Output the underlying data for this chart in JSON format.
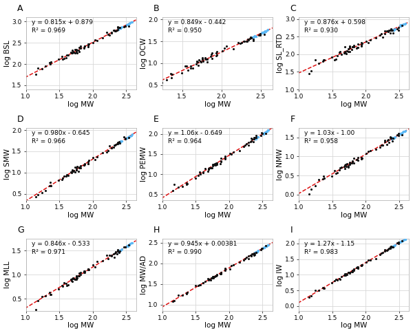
{
  "subplots": [
    {
      "label": "A",
      "ylabel": "log BSL",
      "xlabel": "log MW",
      "equation": "y = 0.815x + 0.879",
      "r2": "R² = 0.969",
      "slope": 0.815,
      "intercept": 0.879,
      "xlim": [
        1.0,
        2.65
      ],
      "ylim": [
        1.4,
        3.1
      ],
      "xticks": [
        1.0,
        1.5,
        2.0,
        2.5
      ],
      "yticks": [
        1.5,
        2.0,
        2.5,
        3.0
      ],
      "x_black": [
        1.1,
        1.25,
        1.3,
        1.35,
        1.42,
        1.45,
        1.48,
        1.52,
        1.55,
        1.58,
        1.6,
        1.62,
        1.65,
        1.68,
        1.7,
        1.72,
        1.75,
        1.78,
        1.8,
        1.82,
        1.85,
        1.87,
        1.88,
        1.9,
        1.91,
        1.92,
        1.93,
        1.95,
        1.96,
        1.97,
        1.98,
        1.99,
        2.0,
        2.0,
        2.01,
        2.02,
        2.03,
        2.04,
        2.05,
        2.06,
        2.07,
        2.08,
        2.09,
        2.1,
        2.11,
        2.12,
        2.13,
        2.14,
        2.15,
        2.16,
        2.17,
        2.18,
        2.19,
        2.2,
        2.21,
        2.22,
        2.23,
        2.24,
        2.25,
        2.28,
        2.3,
        2.32,
        2.35,
        2.38,
        2.4,
        2.42,
        2.45,
        2.48,
        2.5,
        2.52
      ],
      "noise_black": [
        0.0,
        -0.25,
        -0.05,
        0.1,
        -0.08,
        0.15,
        -0.1,
        0.05,
        0.08,
        -0.05,
        0.0,
        0.12,
        -0.06,
        0.08,
        -0.03,
        0.1,
        0.0,
        -0.08,
        0.05,
        0.12,
        -0.05,
        0.08,
        0.0,
        -0.06,
        0.1,
        0.03,
        -0.08,
        0.05,
        0.0,
        0.12,
        -0.05,
        0.08,
        0.0,
        -0.1,
        0.05,
        -0.05,
        0.08,
        0.0,
        -0.06,
        0.1,
        0.03,
        -0.08,
        0.05,
        0.0,
        0.12,
        -0.05,
        0.08,
        0.0,
        -0.06,
        0.1,
        0.03,
        -0.08,
        0.05,
        0.0,
        0.12,
        -0.05,
        0.08,
        0.0,
        -0.06,
        0.05,
        -0.08,
        0.1,
        0.0,
        -0.05,
        0.08,
        0.0,
        -0.06,
        0.05,
        0.08,
        0.0
      ],
      "x_cyan": [
        2.4,
        2.42,
        2.45,
        2.48,
        2.5,
        2.52,
        2.54,
        2.56,
        2.58,
        2.6,
        2.38,
        2.44,
        2.46,
        2.5,
        2.52,
        2.55,
        2.57,
        2.59,
        2.61,
        2.62
      ],
      "noise_cyan": [
        0.02,
        -0.01,
        0.03,
        -0.02,
        0.01,
        0.02,
        -0.01,
        0.03,
        0.0,
        -0.02,
        0.01,
        0.02,
        -0.01,
        0.0,
        0.02,
        -0.01,
        0.03,
        0.0,
        -0.02,
        0.01
      ]
    },
    {
      "label": "B",
      "ylabel": "log OCW",
      "xlabel": "log MW",
      "equation": "y = 0.849x - 0.442",
      "r2": "R² = 0.950",
      "slope": 0.849,
      "intercept": -0.442,
      "xlim": [
        1.25,
        2.65
      ],
      "ylim": [
        0.4,
        2.05
      ],
      "xticks": [
        1.5,
        2.0,
        2.5
      ],
      "yticks": [
        0.5,
        1.0,
        1.5,
        2.0
      ]
    },
    {
      "label": "C",
      "ylabel": "log SL_RTD",
      "xlabel": "log MW",
      "equation": "y = 0.876x + 0.598",
      "r2": "R² = 0.930",
      "slope": 0.876,
      "intercept": 0.598,
      "xlim": [
        1.0,
        2.65
      ],
      "ylim": [
        1.0,
        3.05
      ],
      "xticks": [
        1.0,
        1.5,
        2.0,
        2.5
      ],
      "yticks": [
        1.0,
        1.5,
        2.0,
        2.5,
        3.0
      ]
    },
    {
      "label": "D",
      "ylabel": "log SMW",
      "xlabel": "log MW",
      "equation": "y = 0.980x - 0.645",
      "r2": "R² = 0.966",
      "slope": 0.98,
      "intercept": -0.645,
      "xlim": [
        1.0,
        2.65
      ],
      "ylim": [
        0.35,
        2.05
      ],
      "xticks": [
        1.0,
        1.5,
        2.0,
        2.5
      ],
      "yticks": [
        0.5,
        1.0,
        1.5,
        2.0
      ]
    },
    {
      "label": "E",
      "ylabel": "log PEMW",
      "xlabel": "log MW",
      "equation": "y = 1.06x - 0.649",
      "r2": "R² = 0.964",
      "slope": 1.06,
      "intercept": -0.649,
      "xlim": [
        1.0,
        2.65
      ],
      "ylim": [
        0.35,
        2.15
      ],
      "xticks": [
        1.0,
        1.5,
        2.0,
        2.5
      ],
      "yticks": [
        0.5,
        1.0,
        1.5,
        2.0
      ]
    },
    {
      "label": "F",
      "ylabel": "log NMW",
      "xlabel": "log MW",
      "equation": "y = 1.03x - 1.00",
      "r2": "R² = 0.958",
      "slope": 1.03,
      "intercept": -1.0,
      "xlim": [
        1.0,
        2.65
      ],
      "ylim": [
        -0.15,
        1.75
      ],
      "xticks": [
        1.0,
        1.5,
        2.0,
        2.5
      ],
      "yticks": [
        0.0,
        0.5,
        1.0,
        1.5
      ]
    },
    {
      "label": "G",
      "ylabel": "log MLL",
      "xlabel": "log MW",
      "equation": "y = 0.846x - 0.533",
      "r2": "R² = 0.971",
      "slope": 0.846,
      "intercept": -0.533,
      "xlim": [
        1.0,
        2.65
      ],
      "ylim": [
        0.25,
        1.75
      ],
      "xticks": [
        1.0,
        1.5,
        2.0,
        2.5
      ],
      "yticks": [
        0.5,
        1.0,
        1.5
      ]
    },
    {
      "label": "H",
      "ylabel": "log MW/AD",
      "xlabel": "log MW",
      "equation": "y = 0.945x + 0.00381",
      "r2": "R² = 0.990",
      "slope": 0.945,
      "intercept": 0.00381,
      "xlim": [
        1.0,
        2.65
      ],
      "ylim": [
        0.85,
        2.6
      ],
      "xticks": [
        1.0,
        1.5,
        2.0,
        2.5
      ],
      "yticks": [
        1.0,
        1.5,
        2.0,
        2.5
      ]
    },
    {
      "label": "I",
      "ylabel": "log IW",
      "xlabel": "log MW",
      "equation": "y = 1.27x - 1.15",
      "r2": "R² = 0.983",
      "slope": 1.27,
      "intercept": -1.15,
      "xlim": [
        1.0,
        2.65
      ],
      "ylim": [
        -0.15,
        2.15
      ],
      "xticks": [
        1.0,
        1.5,
        2.0,
        2.5
      ],
      "yticks": [
        0.0,
        0.5,
        1.0,
        1.5,
        2.0
      ]
    }
  ],
  "scatter_color_black": "#111111",
  "scatter_color_cyan": "#5bb8f5",
  "line_color": "#dd1111",
  "background_color": "#ffffff",
  "grid_color": "#d8d8d8",
  "eq_fontsize": 6.5,
  "label_fontsize": 7.5,
  "tick_fontsize": 6.5,
  "panel_label_fontsize": 9
}
